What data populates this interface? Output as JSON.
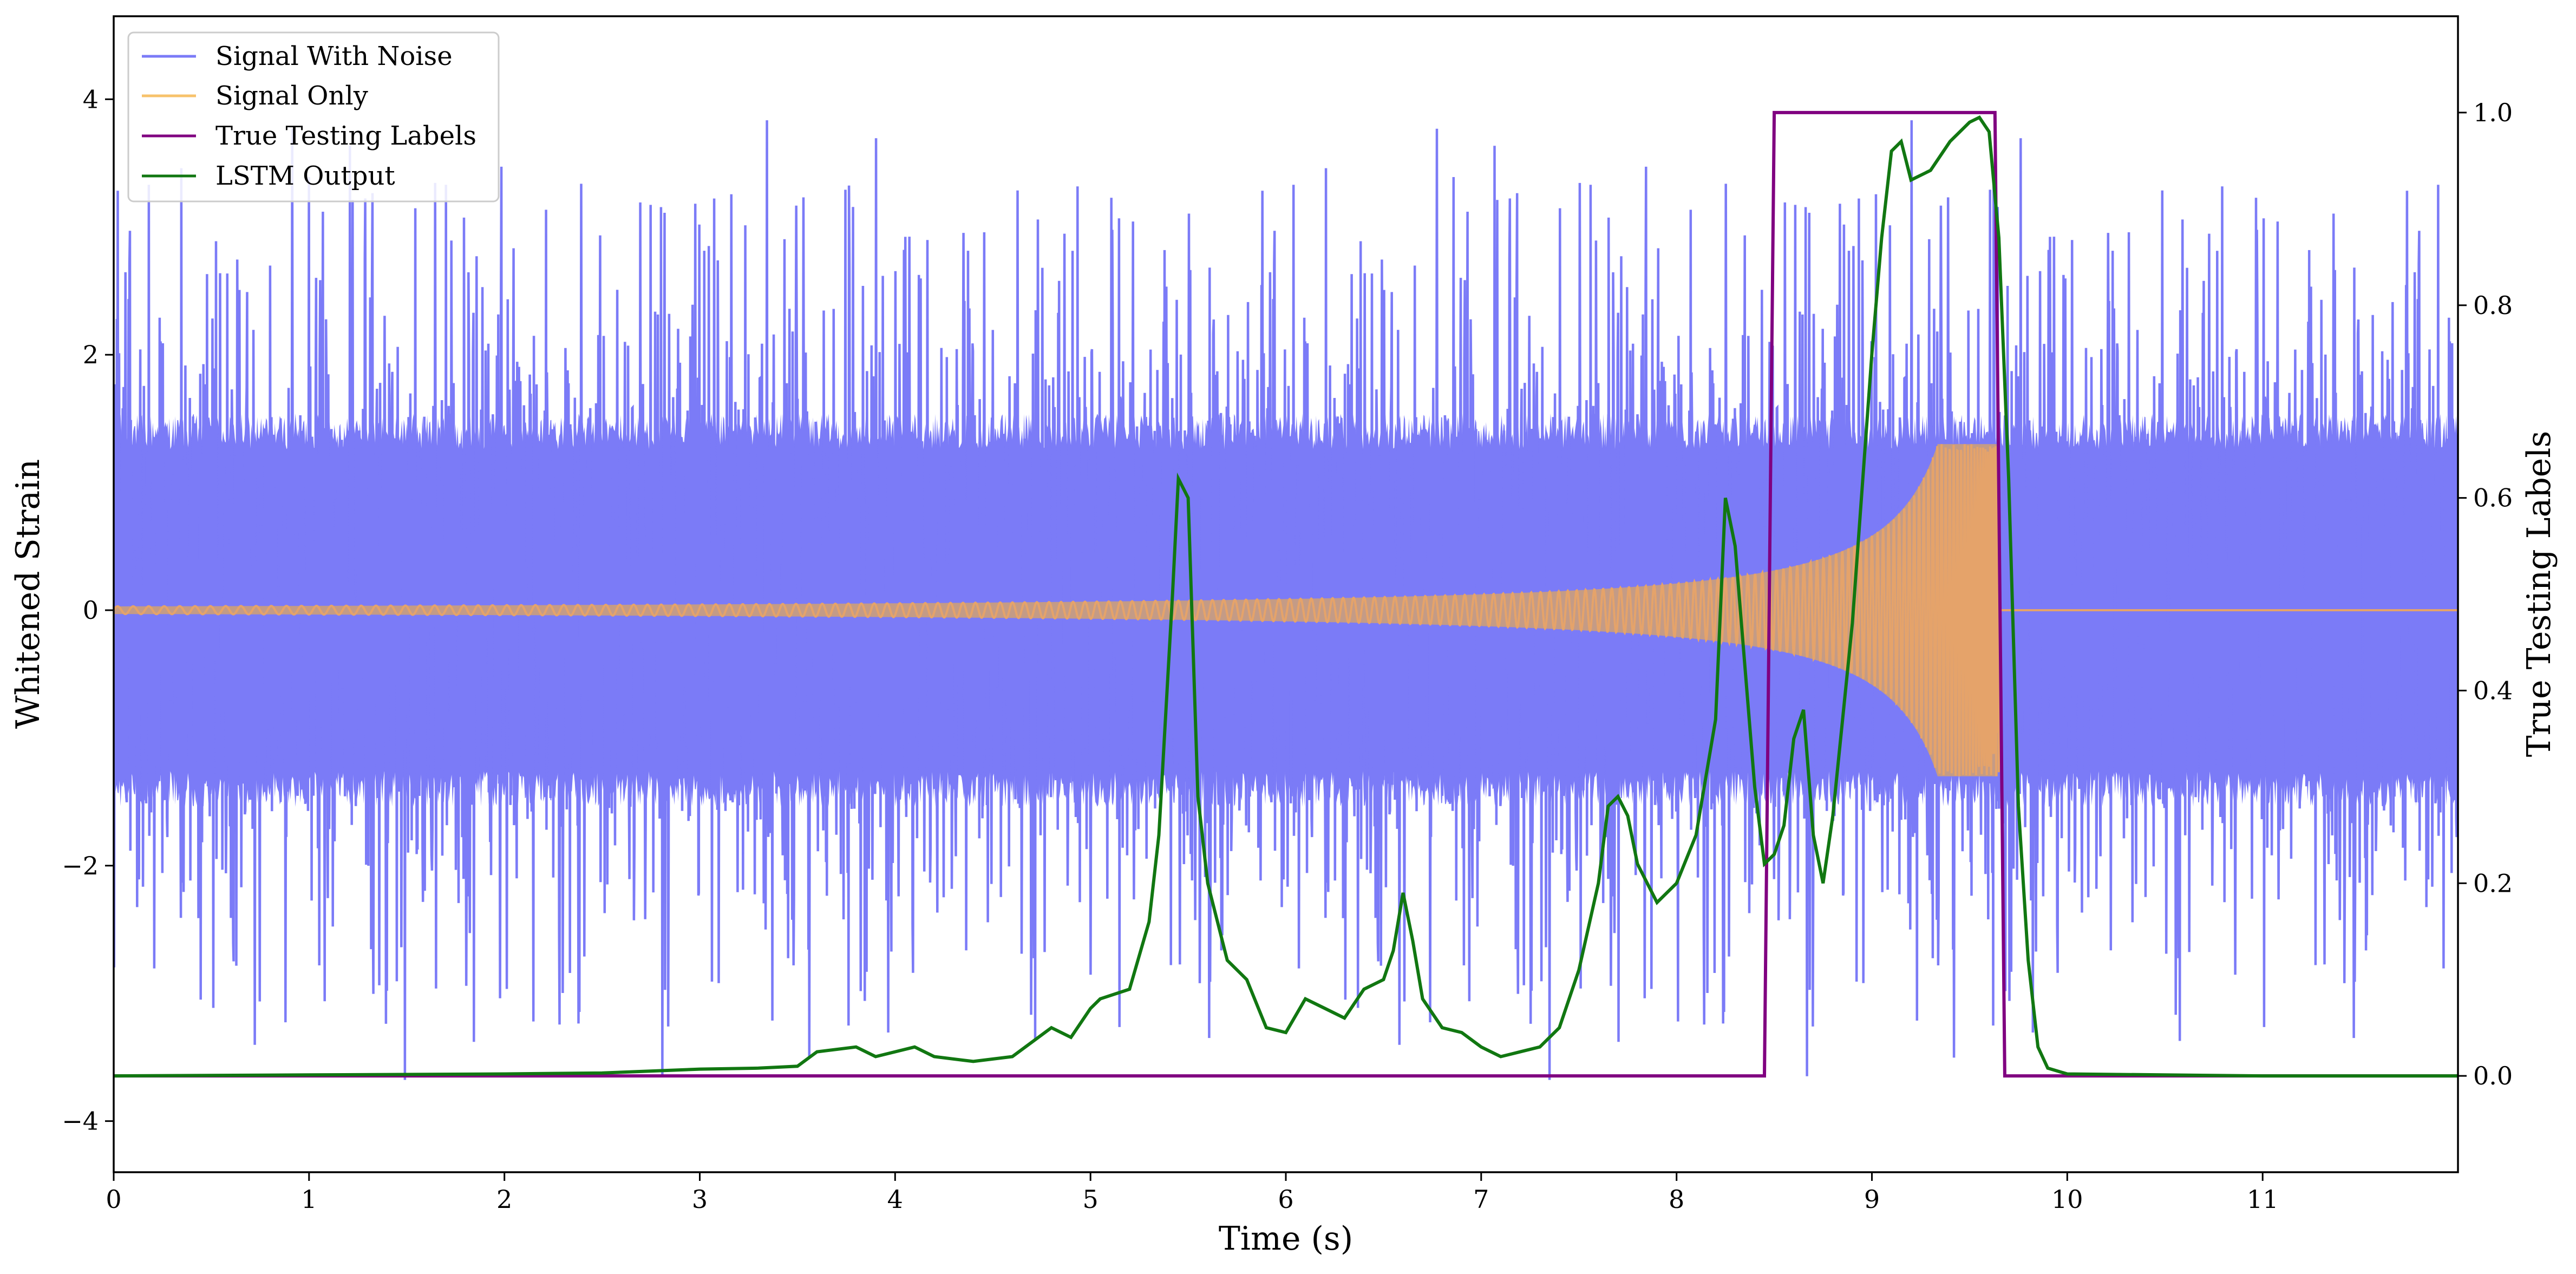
{
  "chart_data": {
    "type": "line",
    "xlabel": "Time (s)",
    "ylabel": "Whitened Strain",
    "y2label": "True Testing Labels",
    "xlim": [
      0,
      12
    ],
    "ylim": [
      -4.4,
      4.65
    ],
    "y2lim": [
      -0.1,
      1.1
    ],
    "xticks": [
      0,
      1,
      2,
      3,
      4,
      5,
      6,
      7,
      8,
      9,
      10,
      11
    ],
    "yticks": [
      -4,
      -2,
      0,
      2,
      4
    ],
    "y2ticks": [
      0.0,
      0.2,
      0.4,
      0.6,
      0.8,
      1.0
    ],
    "xtick_labels": [
      "0",
      "1",
      "2",
      "3",
      "4",
      "5",
      "6",
      "7",
      "8",
      "9",
      "10",
      "11"
    ],
    "ytick_labels": [
      "−4",
      "−2",
      "0",
      "2",
      "4"
    ],
    "y2tick_labels": [
      "0.0",
      "0.2",
      "0.4",
      "0.6",
      "0.8",
      "1.0"
    ],
    "grid": false,
    "legend_position": "top-left",
    "series": [
      {
        "name": "Signal With Noise",
        "axis": "left",
        "color": "#7b7bf7",
        "rendering": "noise band",
        "amplitude_core": 1.4,
        "amplitude_peak": 3.9,
        "x_range": [
          0,
          12
        ]
      },
      {
        "name": "Signal Only",
        "axis": "left",
        "color": "#f7c26b",
        "rendering": "chirp",
        "amplitude_start": 0.03,
        "amplitude_at_merger": 1.3,
        "merger_time": 9.65,
        "x_range": [
          0,
          12
        ]
      },
      {
        "name": "True Testing Labels",
        "axis": "right",
        "color": "#800080",
        "x": [
          0,
          8.45,
          8.5,
          9.63,
          9.68,
          12
        ],
        "y": [
          0,
          0,
          1,
          1,
          0,
          0
        ]
      },
      {
        "name": "LSTM Output",
        "axis": "right",
        "color": "#117711",
        "x": [
          0,
          1,
          2,
          2.5,
          3,
          3.3,
          3.5,
          3.6,
          3.8,
          3.9,
          4.0,
          4.1,
          4.2,
          4.4,
          4.6,
          4.7,
          4.8,
          4.9,
          5.0,
          5.05,
          5.2,
          5.3,
          5.35,
          5.42,
          5.45,
          5.5,
          5.55,
          5.6,
          5.7,
          5.8,
          5.9,
          6.0,
          6.1,
          6.2,
          6.3,
          6.4,
          6.5,
          6.55,
          6.6,
          6.65,
          6.7,
          6.8,
          6.9,
          7.0,
          7.1,
          7.2,
          7.3,
          7.4,
          7.5,
          7.6,
          7.65,
          7.7,
          7.75,
          7.8,
          7.9,
          8.0,
          8.1,
          8.2,
          8.25,
          8.3,
          8.4,
          8.45,
          8.5,
          8.55,
          8.6,
          8.65,
          8.7,
          8.75,
          8.8,
          8.9,
          9.0,
          9.05,
          9.1,
          9.15,
          9.2,
          9.3,
          9.4,
          9.5,
          9.55,
          9.6,
          9.65,
          9.7,
          9.75,
          9.8,
          9.85,
          9.9,
          10.0,
          11.0,
          12.0
        ],
        "y": [
          0,
          0.001,
          0.002,
          0.003,
          0.007,
          0.008,
          0.01,
          0.025,
          0.03,
          0.02,
          0.025,
          0.03,
          0.02,
          0.015,
          0.02,
          0.035,
          0.05,
          0.04,
          0.07,
          0.08,
          0.09,
          0.16,
          0.25,
          0.5,
          0.62,
          0.6,
          0.29,
          0.2,
          0.12,
          0.1,
          0.05,
          0.045,
          0.08,
          0.07,
          0.06,
          0.09,
          0.1,
          0.13,
          0.19,
          0.14,
          0.08,
          0.05,
          0.045,
          0.03,
          0.02,
          0.025,
          0.03,
          0.05,
          0.11,
          0.2,
          0.28,
          0.29,
          0.27,
          0.22,
          0.18,
          0.2,
          0.25,
          0.37,
          0.6,
          0.55,
          0.3,
          0.22,
          0.23,
          0.26,
          0.35,
          0.38,
          0.25,
          0.2,
          0.27,
          0.47,
          0.75,
          0.87,
          0.96,
          0.97,
          0.93,
          0.94,
          0.97,
          0.99,
          0.995,
          0.98,
          0.87,
          0.62,
          0.28,
          0.12,
          0.03,
          0.008,
          0.002,
          0,
          0
        ]
      }
    ]
  }
}
